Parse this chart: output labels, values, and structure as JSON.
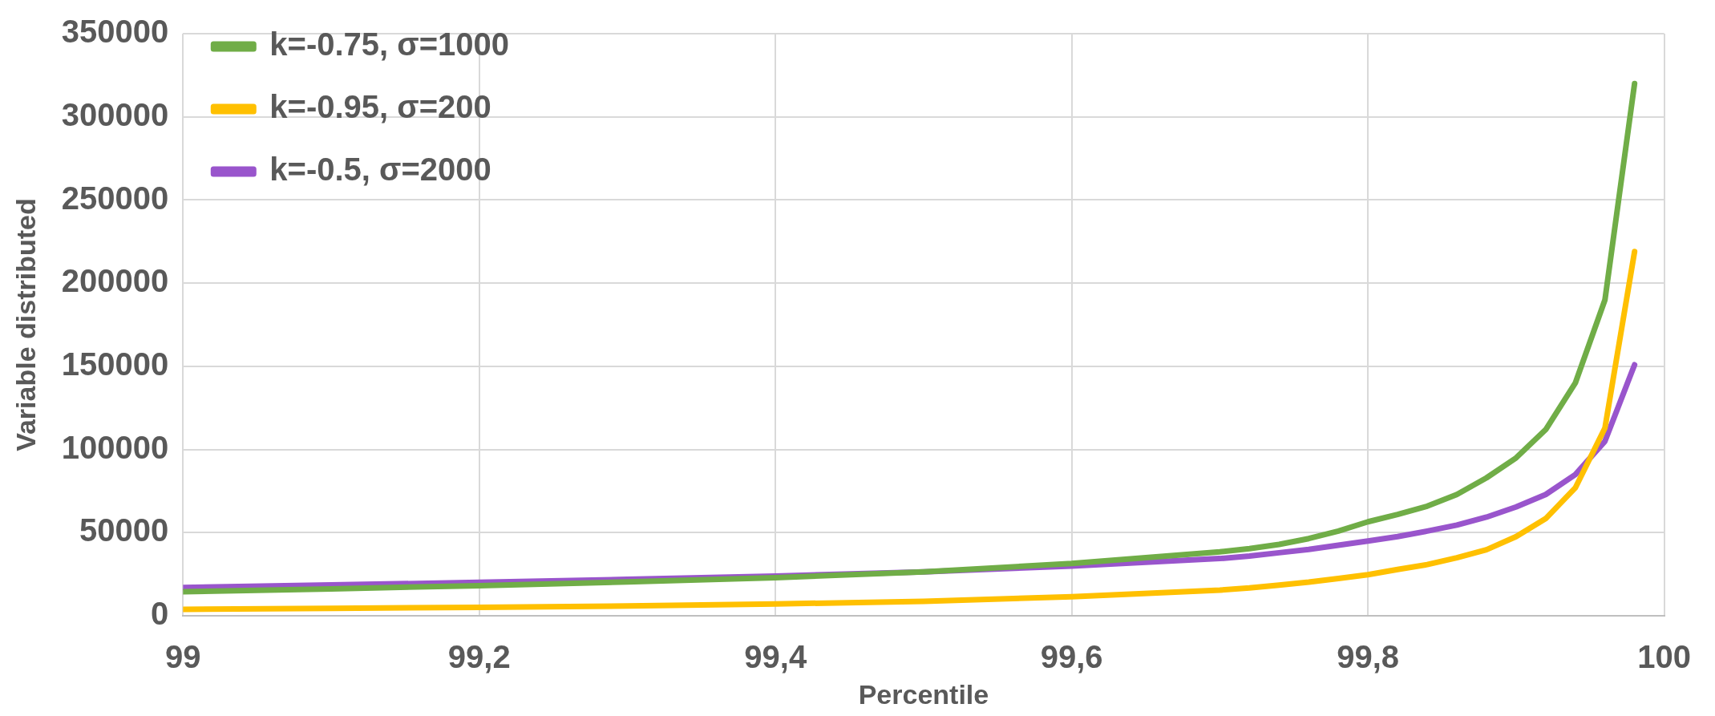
{
  "chart_data": {
    "type": "line",
    "xlabel": "Percentile",
    "ylabel": "Variable distributed",
    "x": [
      99,
      99.1,
      99.2,
      99.3,
      99.4,
      99.5,
      99.6,
      99.7,
      99.72,
      99.74,
      99.76,
      99.78,
      99.8,
      99.82,
      99.84,
      99.86,
      99.88,
      99.9,
      99.92,
      99.94,
      99.96,
      99.98
    ],
    "series": [
      {
        "name": "k=-0.75, σ=1000",
        "color": "#70ad47",
        "values": [
          14500,
          16300,
          18200,
          20500,
          23000,
          26500,
          31500,
          38500,
          40500,
          43000,
          46500,
          51000,
          56600,
          61000,
          66000,
          73000,
          83000,
          95000,
          112000,
          140000,
          190000,
          320000
        ]
      },
      {
        "name": "k=-0.95, σ=200",
        "color": "#ffc000",
        "values": [
          4000,
          4600,
          5200,
          6000,
          7200,
          8800,
          11500,
          15500,
          16800,
          18500,
          20300,
          22500,
          24800,
          27900,
          30900,
          35000,
          39800,
          47700,
          58500,
          77000,
          113000,
          219000
        ]
      },
      {
        "name": "k=-0.5, σ=2000",
        "color": "#9955cc",
        "values": [
          17100,
          18600,
          20200,
          22000,
          24000,
          26500,
          30000,
          34500,
          36000,
          38000,
          40000,
          42500,
          45000,
          47700,
          51000,
          54600,
          59400,
          65500,
          73000,
          85000,
          105000,
          151000
        ]
      }
    ],
    "xlim": [
      99,
      100
    ],
    "xticks": [
      99,
      {
        "value": 99.2,
        "label": "99,2"
      },
      {
        "value": 99.4,
        "label": "99,4"
      },
      {
        "value": 99.6,
        "label": "99,6"
      },
      {
        "value": 99.8,
        "label": "99,8"
      },
      100
    ],
    "ylim": [
      0,
      350000
    ],
    "yticks": [
      0,
      50000,
      100000,
      150000,
      200000,
      250000,
      300000,
      350000
    ],
    "grid": true,
    "legend": "top left",
    "marker": "none",
    "line_style": "solid"
  }
}
